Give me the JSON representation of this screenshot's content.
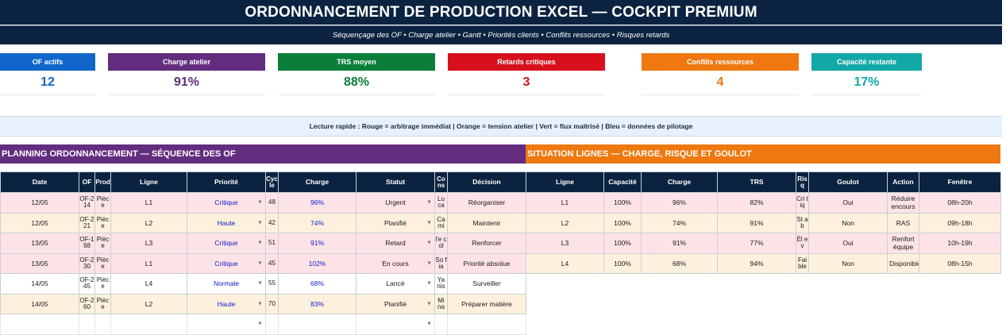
{
  "header": {
    "title": "ORDONNANCEMENT DE PRODUCTION EXCEL — COCKPIT PREMIUM",
    "subtitle": "Séquençage des OF • Charge atelier • Gantt • Priorités clients • Conflits ressources • Risques retards"
  },
  "kpis": [
    {
      "label": "OF actifs",
      "value": "12",
      "color": "#1166cc",
      "value_color": "#1166cc"
    },
    {
      "label": "Charge atelier",
      "value": "91%",
      "color": "#632d7f",
      "value_color": "#632d7f"
    },
    {
      "label": "TRS moyen",
      "value": "88%",
      "color": "#0b7f3a",
      "value_color": "#0b7f3a"
    },
    {
      "label": "Retards critiques",
      "value": "3",
      "color": "#d8101c",
      "value_color": "#d8101c"
    },
    {
      "label": "Conflits ressources",
      "value": "4",
      "color": "#ef7810",
      "value_color": "#ef7810"
    },
    {
      "label": "Capacité restante",
      "value": "17%",
      "color": "#12a8a8",
      "value_color": "#12a8a8"
    }
  ],
  "legend": "Lecture rapide : Rouge = arbitrage immédiat | Orange = tension atelier | Vert = flux maîtrisé | Bleu = données de pilotage",
  "planning": {
    "title": "PLANNING ORDONNANCEMENT — SÉQUENCE DES OF",
    "columns": [
      "Date",
      "OF",
      "Prod",
      "Ligne",
      "Priorité",
      "Cycle",
      "Charge",
      "Statut",
      "Cons",
      "Décision"
    ],
    "rows": [
      {
        "date": "12/05",
        "of": "OF-214",
        "prod": "Pièce",
        "ligne": "L1",
        "priorite": "Critique",
        "cycle": "48",
        "charge": "96%",
        "statut": "Urgent",
        "cons": "Lu ca",
        "decision": "Réorganiser"
      },
      {
        "date": "12/05",
        "of": "OF-221",
        "prod": "Pièce",
        "ligne": "L2",
        "priorite": "Haute",
        "cycle": "42",
        "charge": "74%",
        "statut": "Planifié",
        "cons": "Ca mi",
        "decision": "Maintenir"
      },
      {
        "date": "13/05",
        "of": "OF-198",
        "prod": "Pièce",
        "ligne": "L3",
        "priorite": "Critique",
        "cycle": "51",
        "charge": "91%",
        "statut": "Retard",
        "cons": "l'e col",
        "decision": "Renforcer"
      },
      {
        "date": "13/05",
        "of": "OF-230",
        "prod": "Pièce",
        "ligne": "L1",
        "priorite": "Critique",
        "cycle": "45",
        "charge": "102%",
        "statut": "En cours",
        "cons": "So fia",
        "decision": "Priorité absolue"
      },
      {
        "date": "14/05",
        "of": "OF-245",
        "prod": "Pièce",
        "ligne": "L4",
        "priorite": "Normale",
        "cycle": "55",
        "charge": "68%",
        "statut": "Lancé",
        "cons": "Ya nis",
        "decision": "Surveiller"
      },
      {
        "date": "14/05",
        "of": "OF-260",
        "prod": "Pièce",
        "ligne": "L2",
        "priorite": "Haute",
        "cycle": "70",
        "charge": "83%",
        "statut": "Planifié",
        "cons": "Mi na",
        "decision": "Préparer matière"
      }
    ]
  },
  "situation": {
    "title": "SITUATION LIGNES — CHARGE, RISQUE ET GOULOT",
    "columns": [
      "Ligne",
      "Capacité",
      "Charge",
      "TRS",
      "Risq",
      "Goulot",
      "Action",
      "Fenêtre"
    ],
    "rows": [
      {
        "ligne": "L1",
        "capacite": "100%",
        "charge": "96%",
        "trs": "82%",
        "risq": "Cri tiq",
        "goulot": "Oui",
        "action": "Réduire encours",
        "fenetre": "08h-20h"
      },
      {
        "ligne": "L2",
        "capacite": "100%",
        "charge": "74%",
        "trs": "91%",
        "risq": "St ab",
        "goulot": "Non",
        "action": "RAS",
        "fenetre": "09h-18h"
      },
      {
        "ligne": "L3",
        "capacite": "100%",
        "charge": "91%",
        "trs": "77%",
        "risq": "Él ev",
        "goulot": "Oui",
        "action": "Renfort équipe",
        "fenetre": "10h-19h"
      },
      {
        "ligne": "L4",
        "capacite": "100%",
        "charge": "68%",
        "trs": "94%",
        "risq": "Fai ble",
        "goulot": "Non",
        "action": "Disponible",
        "fenetre": "08h-15h"
      }
    ]
  }
}
